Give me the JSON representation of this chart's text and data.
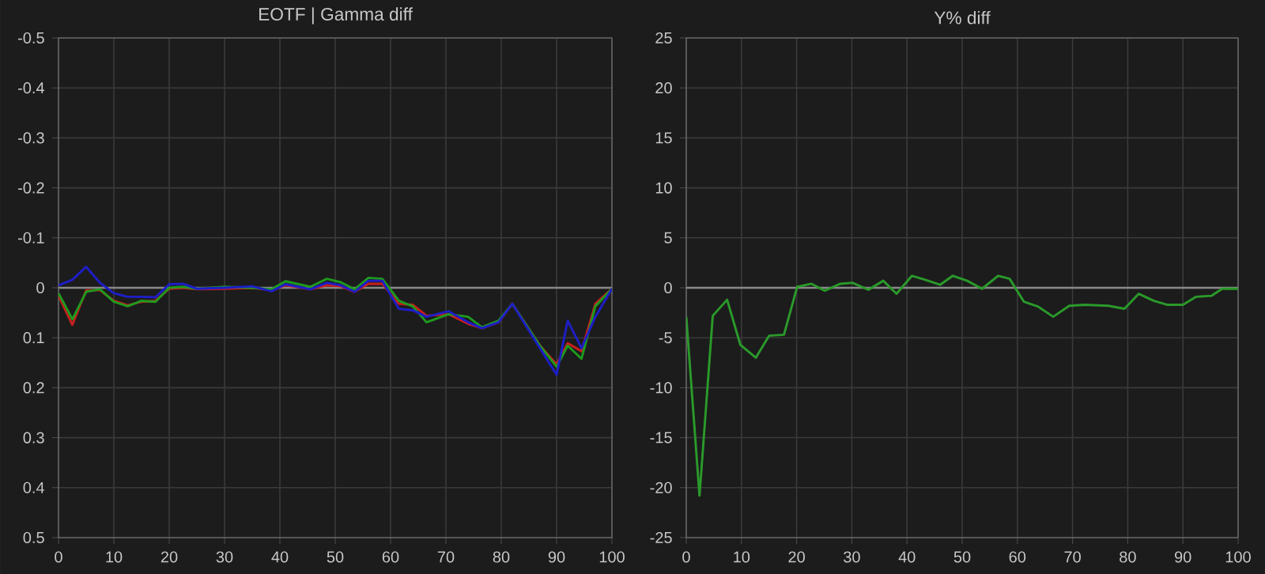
{
  "chart_data": [
    {
      "type": "line",
      "title": "EOTF | Gamma diff",
      "xlim": [
        0,
        100
      ],
      "xticks": [
        0,
        10,
        20,
        30,
        40,
        50,
        60,
        70,
        80,
        90,
        100
      ],
      "ylim": [
        0.5,
        -0.5
      ],
      "yticks": [
        -0.5,
        -0.4,
        -0.3,
        -0.2,
        -0.1,
        0,
        0.1,
        0.2,
        0.3,
        0.4,
        0.5
      ],
      "grid": true,
      "x": [
        0,
        2.5,
        5,
        7.5,
        10,
        12.5,
        15,
        17.5,
        20,
        22.5,
        25,
        30,
        35,
        38.5,
        41,
        45.5,
        48.5,
        51,
        53.5,
        56,
        58.5,
        61.5,
        64,
        66.5,
        70.5,
        74,
        76.5,
        79.5,
        82,
        87,
        90,
        92,
        94.5,
        97,
        100
      ],
      "ref_lines": [
        {
          "axis": "y",
          "value": 0,
          "color": "#8a8a8a"
        }
      ],
      "series": [
        {
          "color": "#c81e1e",
          "values": [
            0.016,
            0.074,
            0.005,
            0.005,
            0.026,
            0.035,
            0.028,
            0.026,
            0.002,
            0,
            0.003,
            0.002,
            0,
            0.005,
            -0.005,
            0.003,
            -0.005,
            -0.003,
            0.008,
            -0.008,
            -0.008,
            0.032,
            0.034,
            0.056,
            0.053,
            0.072,
            0.081,
            0.069,
            0.032,
            0.116,
            0.153,
            0.111,
            0.127,
            0.032,
            0.002
          ]
        },
        {
          "color": "#1e9a1e",
          "values": [
            0.011,
            0.063,
            0.008,
            0.003,
            0.028,
            0.037,
            0.026,
            0.028,
            0,
            -0.002,
            0.002,
            -0.002,
            0,
            0.003,
            -0.013,
            -0.002,
            -0.018,
            -0.011,
            0.003,
            -0.02,
            -0.018,
            0.026,
            0.037,
            0.069,
            0.053,
            0.058,
            0.079,
            0.066,
            0.032,
            0.116,
            0.158,
            0.116,
            0.142,
            0.037,
            0.002
          ]
        },
        {
          "color": "#1e1ec8",
          "values": [
            -0.005,
            -0.016,
            -0.042,
            -0.01,
            0.011,
            0.018,
            0.018,
            0.019,
            -0.007,
            -0.008,
            0.002,
            0,
            -0.003,
            0.007,
            -0.007,
            0.003,
            -0.01,
            -0.005,
            0.008,
            -0.014,
            -0.014,
            0.042,
            0.045,
            0.058,
            0.047,
            0.069,
            0.081,
            0.069,
            0.032,
            0.121,
            0.174,
            0.066,
            0.121,
            0.058,
            0.002
          ]
        }
      ]
    },
    {
      "type": "line",
      "title": "Y% diff",
      "xlim": [
        0,
        100
      ],
      "xticks": [
        0,
        10,
        20,
        30,
        40,
        50,
        60,
        70,
        80,
        90,
        100
      ],
      "ylim": [
        -25,
        25
      ],
      "yticks": [
        -25,
        -20,
        -15,
        -10,
        -5,
        0,
        5,
        10,
        15,
        20,
        25
      ],
      "grid": true,
      "x": [
        0,
        2.4,
        4.8,
        7.4,
        9.8,
        12.6,
        15,
        17.7,
        20.1,
        22.7,
        25.1,
        27.9,
        30.1,
        33,
        35.7,
        38.1,
        40.9,
        43.3,
        46,
        48.3,
        50.9,
        53.6,
        56.5,
        58.6,
        61.2,
        63.8,
        66.5,
        69.4,
        72.2,
        76.5,
        79.4,
        82,
        84.7,
        87.1,
        90,
        92.4,
        95.2,
        97.1,
        100
      ],
      "ref_lines": [
        {
          "axis": "y",
          "value": 0,
          "color": "#8a8a8a"
        }
      ],
      "series": [
        {
          "color": "#2a9a2a",
          "values": [
            -2.9,
            -20.8,
            -2.8,
            -1.2,
            -5.7,
            -7.0,
            -4.8,
            -4.7,
            0.1,
            0.4,
            -0.3,
            0.4,
            0.5,
            -0.2,
            0.7,
            -0.6,
            1.2,
            0.8,
            0.3,
            1.2,
            0.7,
            -0.1,
            1.2,
            0.9,
            -1.4,
            -1.9,
            -2.9,
            -1.8,
            -1.7,
            -1.8,
            -2.1,
            -0.6,
            -1.3,
            -1.7,
            -1.7,
            -0.9,
            -0.8,
            -0.1,
            -0.1
          ]
        }
      ]
    }
  ]
}
